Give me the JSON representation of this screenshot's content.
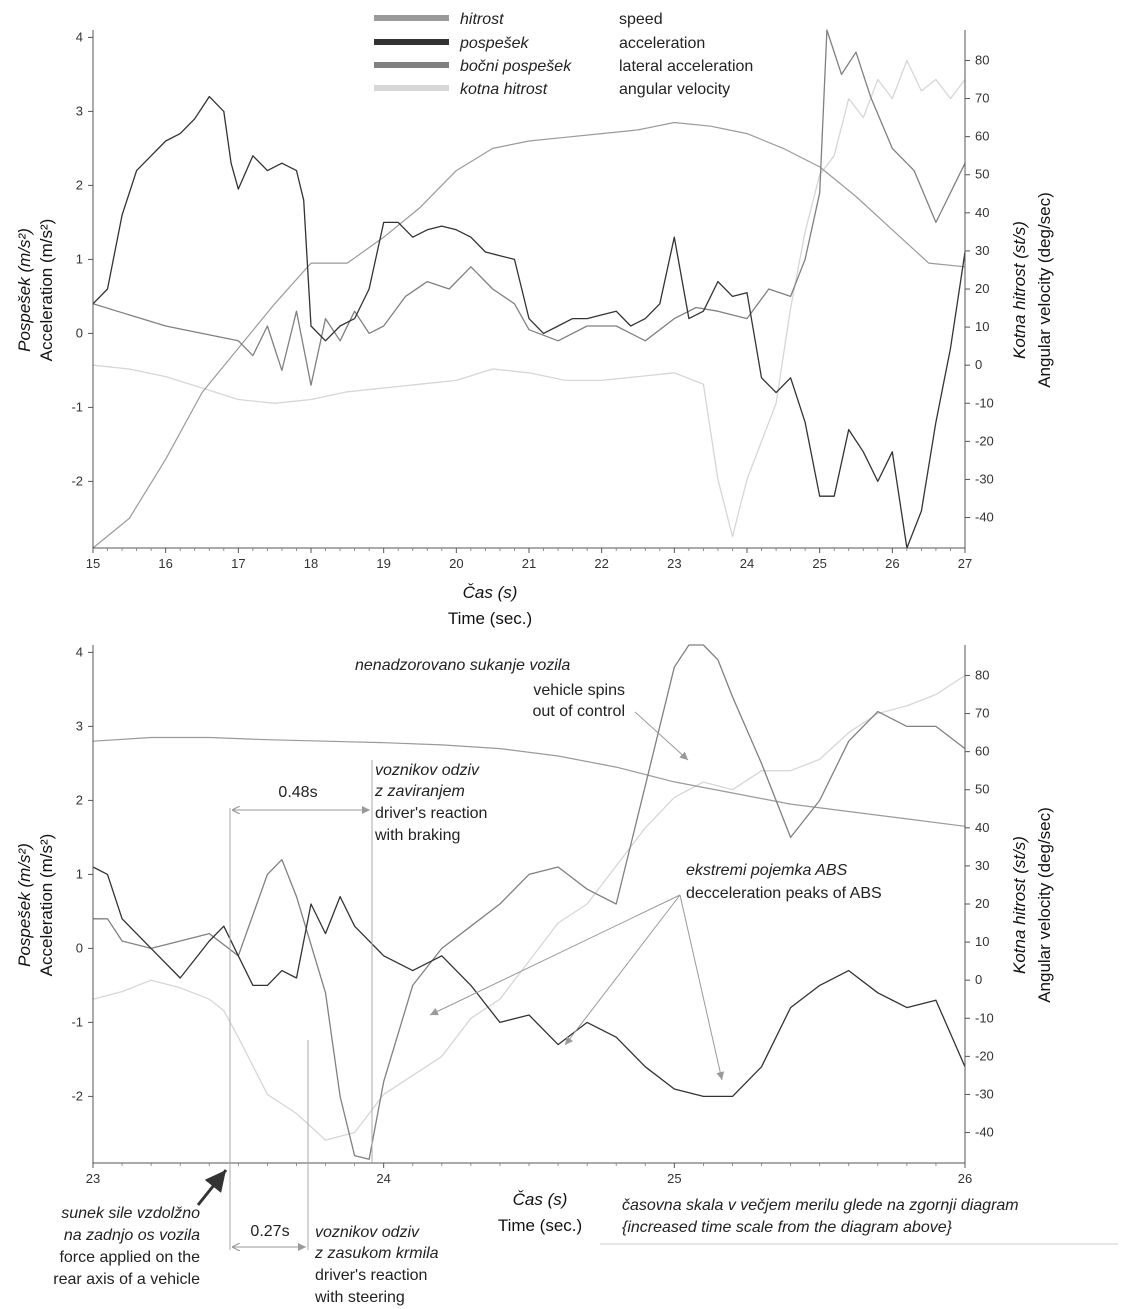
{
  "legend": [
    {
      "sl": "hitrost",
      "en": "speed",
      "color": "#9a9a9a"
    },
    {
      "sl": "pospešek",
      "en": "acceleration",
      "color": "#333333"
    },
    {
      "sl": "bočni pospešek",
      "en": "lateral acceleration",
      "color": "#808080"
    },
    {
      "sl": "kotna hitrost",
      "en": "angular velocity",
      "color": "#d6d6d6"
    }
  ],
  "axes": {
    "yleft_sl": "Pospešek",
    "yleft_sl_unit": "(m/s²)",
    "yleft_en": "Acceleration (m/s²)",
    "yright_sl": "Kotna hitrost",
    "yright_sl_unit": "(st/s)",
    "yright_en": "Angular velocity (deg/sec)",
    "x_sl": "Čas (s)",
    "x_en": "Time (sec.)"
  },
  "annotations": {
    "spin_sl": "nenadzorovano sukanje vozila",
    "spin_en_1": "vehicle spins",
    "spin_en_2": "out of control",
    "brake_sl_1": "voznikov odziv",
    "brake_sl_2": "z zaviranjem",
    "brake_en_1": "driver's reaction",
    "brake_en_2": "with braking",
    "brake_dt": "0.48s",
    "abs_sl": "ekstremi pojemka ABS",
    "abs_en": "decceleration peaks of ABS",
    "force_sl_1": "sunek sile vzdolžno",
    "force_sl_2": "na zadnjo os vozila",
    "force_en_1": "force applied on the",
    "force_en_2": "rear axis of a vehicle",
    "steer_dt": "0.27s",
    "steer_sl_1": "voznikov odziv",
    "steer_sl_2": "z zasukom krmila",
    "steer_en_1": "driver's reaction",
    "steer_en_2": "with steering",
    "scale_sl": "časovna skala v večjem merilu glede na zgornji diagram",
    "scale_en": "{increased time scale from the diagram above}"
  },
  "chart_data": [
    {
      "type": "line",
      "xlim": [
        15,
        27
      ],
      "ylim_left": [
        -2.9,
        4.1
      ],
      "ylim_right": [
        -48,
        88
      ],
      "xticks": [
        15,
        16,
        17,
        18,
        19,
        20,
        21,
        22,
        23,
        24,
        25,
        26,
        27
      ],
      "yticks_left": [
        -2,
        -1,
        0,
        1,
        2,
        3,
        4
      ],
      "yticks_right": [
        -40,
        -30,
        -20,
        -10,
        0,
        10,
        20,
        30,
        40,
        50,
        60,
        70,
        80
      ],
      "series": [
        {
          "name": "hitrost",
          "axis": "left",
          "x": [
            15,
            15.5,
            16,
            16.5,
            17,
            17.5,
            18,
            18.5,
            19,
            19.5,
            20,
            20.5,
            21,
            21.5,
            22,
            22.5,
            23,
            23.5,
            24,
            24.5,
            25,
            25.5,
            26,
            26.5,
            27
          ],
          "y": [
            -2.9,
            -2.5,
            -1.7,
            -0.8,
            -0.2,
            0.4,
            0.95,
            0.95,
            1.3,
            1.7,
            2.2,
            2.5,
            2.6,
            2.65,
            2.7,
            2.75,
            2.85,
            2.8,
            2.7,
            2.5,
            2.25,
            1.85,
            1.4,
            0.95,
            0.9
          ]
        },
        {
          "name": "pospešek",
          "axis": "left",
          "x": [
            15,
            15.2,
            15.4,
            15.6,
            15.8,
            16,
            16.2,
            16.4,
            16.6,
            16.8,
            16.9,
            17,
            17.2,
            17.4,
            17.6,
            17.8,
            17.9,
            18,
            18.2,
            18.4,
            18.6,
            18.8,
            19,
            19.2,
            19.4,
            19.6,
            19.8,
            20,
            20.2,
            20.4,
            20.6,
            20.8,
            21,
            21.2,
            21.4,
            21.6,
            21.8,
            22,
            22.2,
            22.4,
            22.6,
            22.8,
            23,
            23.2,
            23.4,
            23.6,
            23.8,
            24,
            24.2,
            24.4,
            24.6,
            24.8,
            25,
            25.2,
            25.4,
            25.6,
            25.8,
            26,
            26.2,
            26.4,
            26.6,
            26.8,
            27
          ],
          "y": [
            0.4,
            0.6,
            1.6,
            2.2,
            2.4,
            2.6,
            2.7,
            2.9,
            3.2,
            3.0,
            2.3,
            1.95,
            2.4,
            2.2,
            2.3,
            2.2,
            1.8,
            0.1,
            -0.1,
            0.1,
            0.2,
            0.6,
            1.5,
            1.5,
            1.3,
            1.4,
            1.45,
            1.4,
            1.3,
            1.1,
            1.05,
            1.0,
            0.2,
            0.0,
            0.1,
            0.2,
            0.2,
            0.25,
            0.3,
            0.1,
            0.2,
            0.4,
            1.3,
            0.2,
            0.3,
            0.7,
            0.5,
            0.55,
            -0.6,
            -0.8,
            -0.6,
            -1.2,
            -2.2,
            -2.2,
            -1.3,
            -1.6,
            -2.0,
            -1.6,
            -2.9,
            -2.4,
            -1.2,
            -0.2,
            1.1
          ]
        },
        {
          "name": "bočni pospešek",
          "axis": "left",
          "x": [
            15,
            15.5,
            16,
            16.5,
            17,
            17.2,
            17.4,
            17.6,
            17.8,
            18,
            18.2,
            18.4,
            18.6,
            18.8,
            19,
            19.3,
            19.6,
            19.9,
            20.2,
            20.5,
            20.8,
            21,
            21.4,
            21.8,
            22.2,
            22.6,
            23,
            23.3,
            23.6,
            24,
            24.3,
            24.6,
            24.8,
            25,
            25.1,
            25.3,
            25.5,
            25.7,
            26,
            26.3,
            26.6,
            27
          ],
          "y": [
            0.4,
            0.25,
            0.1,
            0.0,
            -0.1,
            -0.3,
            0.1,
            -0.5,
            0.3,
            -0.7,
            0.2,
            -0.1,
            0.3,
            0.0,
            0.1,
            0.5,
            0.7,
            0.6,
            0.9,
            0.6,
            0.4,
            0.05,
            -0.1,
            0.1,
            0.1,
            -0.1,
            0.2,
            0.35,
            0.3,
            0.2,
            0.6,
            0.5,
            1.0,
            1.9,
            4.1,
            3.5,
            3.8,
            3.2,
            2.5,
            2.2,
            1.5,
            2.3
          ]
        },
        {
          "name": "kotna hitrost",
          "axis": "right",
          "x": [
            15,
            15.5,
            16,
            16.5,
            17,
            17.5,
            18,
            18.5,
            19,
            19.5,
            20,
            20.5,
            21,
            21.5,
            22,
            22.5,
            23,
            23.4,
            23.6,
            23.8,
            24,
            24.2,
            24.4,
            24.6,
            24.8,
            25,
            25.2,
            25.4,
            25.6,
            25.8,
            26,
            26.2,
            26.4,
            26.6,
            26.8,
            27
          ],
          "y": [
            0,
            -1,
            -3,
            -6,
            -9,
            -10,
            -9,
            -7,
            -6,
            -5,
            -4,
            -1,
            -2,
            -4,
            -4,
            -3,
            -2,
            -5,
            -30,
            -45,
            -30,
            -20,
            -10,
            15,
            35,
            50,
            55,
            70,
            65,
            75,
            70,
            80,
            72,
            75,
            70,
            75
          ]
        }
      ]
    },
    {
      "type": "line",
      "xlim": [
        23,
        26
      ],
      "ylim_left": [
        -2.9,
        4.1
      ],
      "ylim_right": [
        -48,
        88
      ],
      "xticks": [
        23,
        24,
        25,
        26
      ],
      "yticks_left": [
        -2,
        -1,
        0,
        1,
        2,
        3,
        4
      ],
      "yticks_right": [
        -40,
        -30,
        -20,
        -10,
        0,
        10,
        20,
        30,
        40,
        50,
        60,
        70,
        80
      ],
      "series": [
        {
          "name": "hitrost",
          "axis": "left",
          "x": [
            23,
            23.2,
            23.4,
            23.6,
            23.8,
            24,
            24.2,
            24.4,
            24.6,
            24.8,
            25,
            25.2,
            25.4,
            25.6,
            25.8,
            26
          ],
          "y": [
            2.8,
            2.85,
            2.85,
            2.82,
            2.8,
            2.78,
            2.75,
            2.7,
            2.6,
            2.45,
            2.25,
            2.1,
            1.95,
            1.85,
            1.75,
            1.65
          ]
        },
        {
          "name": "pospešek",
          "axis": "left",
          "x": [
            23,
            23.05,
            23.1,
            23.2,
            23.3,
            23.4,
            23.45,
            23.5,
            23.55,
            23.6,
            23.65,
            23.7,
            23.75,
            23.8,
            23.85,
            23.9,
            24,
            24.1,
            24.2,
            24.3,
            24.4,
            24.5,
            24.6,
            24.7,
            24.8,
            24.9,
            25,
            25.1,
            25.2,
            25.3,
            25.4,
            25.5,
            25.6,
            25.7,
            25.8,
            25.9,
            26
          ],
          "y": [
            1.1,
            1.0,
            0.4,
            0.0,
            -0.4,
            0.1,
            0.3,
            -0.1,
            -0.5,
            -0.5,
            -0.3,
            -0.4,
            0.6,
            0.2,
            0.7,
            0.3,
            -0.1,
            -0.3,
            -0.1,
            -0.5,
            -1.0,
            -0.9,
            -1.3,
            -1.0,
            -1.2,
            -1.6,
            -1.9,
            -2.0,
            -2.0,
            -1.6,
            -0.8,
            -0.5,
            -0.3,
            -0.6,
            -0.8,
            -0.7,
            -1.6
          ]
        },
        {
          "name": "bočni pospešek",
          "axis": "left",
          "x": [
            23,
            23.05,
            23.1,
            23.2,
            23.3,
            23.4,
            23.5,
            23.6,
            23.65,
            23.7,
            23.8,
            23.85,
            23.9,
            23.95,
            24,
            24.1,
            24.2,
            24.3,
            24.4,
            24.5,
            24.6,
            24.7,
            24.8,
            24.9,
            25,
            25.05,
            25.1,
            25.15,
            25.2,
            25.3,
            25.4,
            25.5,
            25.6,
            25.7,
            25.8,
            25.9,
            26
          ],
          "y": [
            0.4,
            0.4,
            0.1,
            0.0,
            0.1,
            0.2,
            -0.1,
            1.0,
            1.2,
            0.7,
            -0.6,
            -2.0,
            -2.8,
            -2.85,
            -1.8,
            -0.5,
            0.0,
            0.3,
            0.6,
            1.0,
            1.1,
            0.8,
            0.6,
            2.2,
            3.8,
            4.1,
            4.1,
            3.9,
            3.4,
            2.5,
            1.5,
            2.0,
            2.8,
            3.2,
            3.0,
            3.0,
            2.7
          ]
        },
        {
          "name": "kotna hitrost",
          "axis": "right",
          "x": [
            23,
            23.1,
            23.2,
            23.3,
            23.4,
            23.45,
            23.5,
            23.6,
            23.7,
            23.8,
            23.9,
            24,
            24.1,
            24.2,
            24.3,
            24.4,
            24.5,
            24.6,
            24.7,
            24.8,
            24.9,
            25,
            25.1,
            25.2,
            25.3,
            25.4,
            25.5,
            25.6,
            25.7,
            25.8,
            25.9,
            26
          ],
          "y": [
            -5,
            -3,
            0,
            -2,
            -5,
            -8,
            -15,
            -30,
            -35,
            -42,
            -40,
            -30,
            -25,
            -20,
            -10,
            -5,
            5,
            15,
            20,
            30,
            40,
            48,
            52,
            50,
            55,
            55,
            58,
            65,
            70,
            72,
            75,
            80
          ]
        }
      ]
    }
  ]
}
